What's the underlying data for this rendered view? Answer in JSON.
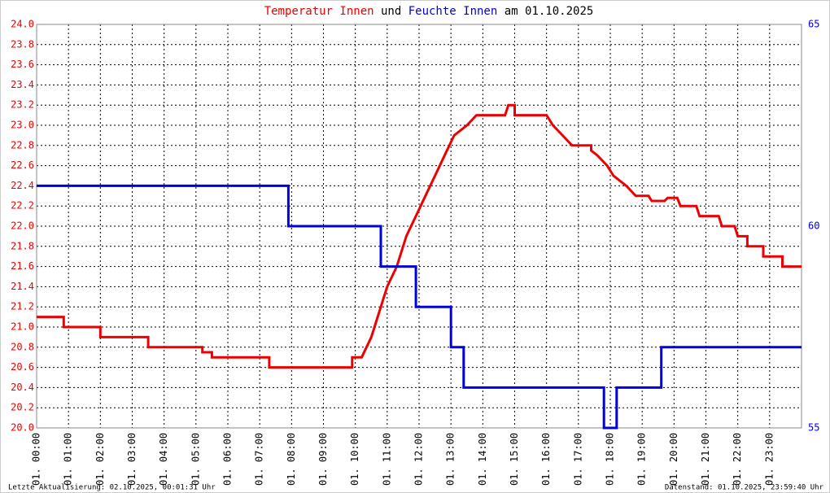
{
  "chart_data": {
    "type": "line",
    "title_parts": [
      "und",
      "am 01.10.2025"
    ],
    "footer_left": "Letzte Aktualisierung: 02.10.2025, 00:01:31 Uhr",
    "footer_right": "Datenstand: 01.10.2025, 23:59:40 Uhr",
    "grid": true,
    "xlim": [
      0,
      24
    ],
    "xticks": [
      {
        "value": 0,
        "label": "01. 00:00"
      },
      {
        "value": 1,
        "label": "01. 01:00"
      },
      {
        "value": 2,
        "label": "01. 02:00"
      },
      {
        "value": 3,
        "label": "01. 03:00"
      },
      {
        "value": 4,
        "label": "01. 04:00"
      },
      {
        "value": 5,
        "label": "01. 05:00"
      },
      {
        "value": 6,
        "label": "01. 06:00"
      },
      {
        "value": 7,
        "label": "01. 07:00"
      },
      {
        "value": 8,
        "label": "01. 08:00"
      },
      {
        "value": 9,
        "label": "01. 09:00"
      },
      {
        "value": 10,
        "label": "01. 10:00"
      },
      {
        "value": 11,
        "label": "01. 11:00"
      },
      {
        "value": 12,
        "label": "01. 12:00"
      },
      {
        "value": 13,
        "label": "01. 13:00"
      },
      {
        "value": 14,
        "label": "01. 14:00"
      },
      {
        "value": 15,
        "label": "01. 15:00"
      },
      {
        "value": 16,
        "label": "01. 16:00"
      },
      {
        "value": 17,
        "label": "01. 17:00"
      },
      {
        "value": 18,
        "label": "01. 18:00"
      },
      {
        "value": 19,
        "label": "01. 19:00"
      },
      {
        "value": 20,
        "label": "01. 20:00"
      },
      {
        "value": 21,
        "label": "01. 21:00"
      },
      {
        "value": 22,
        "label": "01. 22:00"
      },
      {
        "value": 23,
        "label": "01. 23:00"
      }
    ],
    "ylim": [
      20,
      24
    ],
    "yticks": [
      {
        "value": 20,
        "label": "20.0"
      },
      {
        "value": 20.2,
        "label": "20.2"
      },
      {
        "value": 20.4,
        "label": "20.4"
      },
      {
        "value": 20.6,
        "label": "20.6"
      },
      {
        "value": 20.8,
        "label": "20.8"
      },
      {
        "value": 21,
        "label": "21.0"
      },
      {
        "value": 21.2,
        "label": "21.2"
      },
      {
        "value": 21.4,
        "label": "21.4"
      },
      {
        "value": 21.6,
        "label": "21.6"
      },
      {
        "value": 21.8,
        "label": "21.8"
      },
      {
        "value": 22,
        "label": "22.0"
      },
      {
        "value": 22.2,
        "label": "22.2"
      },
      {
        "value": 22.4,
        "label": "22.4"
      },
      {
        "value": 22.6,
        "label": "22.6"
      },
      {
        "value": 22.8,
        "label": "22.8"
      },
      {
        "value": 23,
        "label": "23.0"
      },
      {
        "value": 23.2,
        "label": "23.2"
      },
      {
        "value": 23.4,
        "label": "23.4"
      },
      {
        "value": 23.6,
        "label": "23.6"
      },
      {
        "value": 23.8,
        "label": "23.8"
      },
      {
        "value": 24,
        "label": "24.0"
      }
    ],
    "y2lim": [
      55,
      65
    ],
    "y2ticks": [
      55,
      60,
      65
    ],
    "series": [
      {
        "name": "Temperatur Innen",
        "color": "#ee0000",
        "x": [
          0,
          0.85,
          0.85,
          2.0,
          2.0,
          3.5,
          3.5,
          5.2,
          5.2,
          5.5,
          5.5,
          7.3,
          7.3,
          9.9,
          9.9,
          10.2,
          10.5,
          10.8,
          11.0,
          11.3,
          11.6,
          11.9,
          12.2,
          12.5,
          12.8,
          13.1,
          13.5,
          13.8,
          14.7,
          14.8,
          15.0,
          15.0,
          16.0,
          16.2,
          16.5,
          16.8,
          17.4,
          17.4,
          17.6,
          17.9,
          18.1,
          18.5,
          18.8,
          19.2,
          19.3,
          19.7,
          19.8,
          20.1,
          20.2,
          20.7,
          20.8,
          21.4,
          21.5,
          21.9,
          22.0,
          22.3,
          22.3,
          22.8,
          22.8,
          23.4,
          23.4,
          24
        ],
        "values": [
          21.1,
          21.1,
          21.0,
          21.0,
          20.9,
          20.9,
          20.8,
          20.8,
          20.75,
          20.75,
          20.7,
          20.7,
          20.6,
          20.6,
          20.7,
          20.7,
          20.9,
          21.2,
          21.4,
          21.6,
          21.9,
          22.1,
          22.3,
          22.5,
          22.7,
          22.9,
          23.0,
          23.1,
          23.1,
          23.2,
          23.2,
          23.1,
          23.1,
          23.0,
          22.9,
          22.8,
          22.8,
          22.75,
          22.7,
          22.6,
          22.5,
          22.4,
          22.3,
          22.3,
          22.25,
          22.25,
          22.28,
          22.28,
          22.2,
          22.2,
          22.1,
          22.1,
          22.0,
          22.0,
          21.9,
          21.9,
          21.8,
          21.8,
          21.7,
          21.7,
          21.6,
          21.6
        ]
      },
      {
        "name": "Feuchte Innen",
        "color": "#0000dd",
        "axis": "y2",
        "x": [
          0,
          7.9,
          7.9,
          10.8,
          10.8,
          11.9,
          11.9,
          13.0,
          13.0,
          13.4,
          13.4,
          17.8,
          17.8,
          18.2,
          18.2,
          19.6,
          19.6,
          24
        ],
        "values": [
          61,
          61,
          60,
          60,
          59,
          59,
          58,
          58,
          57,
          57,
          56,
          56,
          55,
          55,
          56,
          56,
          57,
          57
        ]
      }
    ]
  }
}
